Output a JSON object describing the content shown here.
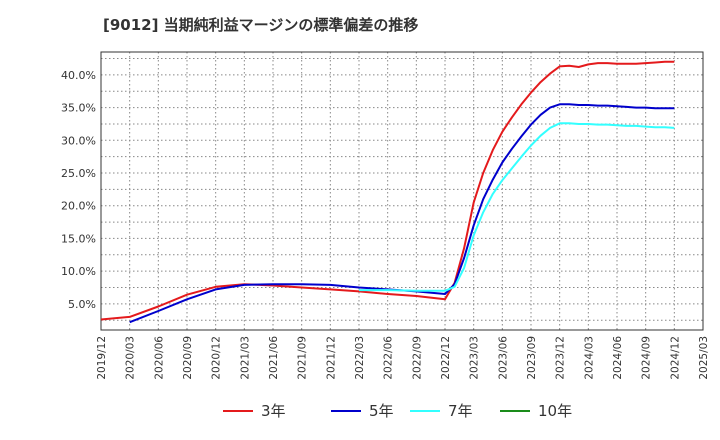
{
  "title": "[9012]  当期純利益マージンの標準偏差の推移",
  "colors": {
    "3年": "#e41a1c",
    "5年": "#0000cc",
    "7年": "#33ffff",
    "10年": "#1a8c1a"
  },
  "chart_data": {
    "type": "line",
    "title": "[9012]  当期純利益マージンの標準偏差の推移",
    "xlabel": "",
    "ylabel": "",
    "x_tick_labels": [
      "2019/12",
      "2020/03",
      "2020/06",
      "2020/09",
      "2020/12",
      "2021/03",
      "2021/06",
      "2021/09",
      "2021/12",
      "2022/03",
      "2022/06",
      "2022/09",
      "2022/12",
      "2023/03",
      "2023/06",
      "2023/09",
      "2023/12",
      "2024/03",
      "2024/06",
      "2024/09",
      "2024/12",
      "2025/03"
    ],
    "y_tick_labels": [
      "5.0%",
      "10.0%",
      "15.0%",
      "20.0%",
      "25.0%",
      "30.0%",
      "35.0%",
      "40.0%"
    ],
    "ylim": [
      1.0,
      43.5
    ],
    "grid": true,
    "legend_position": "bottom",
    "series": [
      {
        "name": "3年",
        "color": "#e41a1c",
        "x": [
          "2019/12",
          "2020/03",
          "2020/06",
          "2020/09",
          "2020/12",
          "2021/03",
          "2021/06",
          "2021/09",
          "2021/12",
          "2022/03",
          "2022/06",
          "2022/09",
          "2022/12",
          "2023/01",
          "2023/02",
          "2023/03",
          "2023/04",
          "2023/05",
          "2023/06",
          "2023/07",
          "2023/08",
          "2023/09",
          "2023/10",
          "2023/11",
          "2023/12",
          "2024/01",
          "2024/02",
          "2024/03",
          "2024/04",
          "2024/05",
          "2024/06",
          "2024/07",
          "2024/08",
          "2024/09",
          "2024/10",
          "2024/11",
          "2024/12"
        ],
        "values": [
          2.6,
          3.0,
          4.6,
          6.4,
          7.6,
          8.0,
          7.8,
          7.5,
          7.2,
          6.9,
          6.5,
          6.2,
          5.7,
          8.2,
          13.5,
          20.5,
          25.0,
          28.5,
          31.3,
          33.5,
          35.5,
          37.3,
          38.9,
          40.2,
          41.3,
          41.4,
          41.2,
          41.6,
          41.8,
          41.8,
          41.7,
          41.7,
          41.7,
          41.8,
          41.9,
          42.0,
          42.0
        ]
      },
      {
        "name": "5年",
        "color": "#0000cc",
        "x": [
          "2020/03",
          "2020/06",
          "2020/09",
          "2020/12",
          "2021/03",
          "2021/06",
          "2021/09",
          "2021/12",
          "2022/03",
          "2022/06",
          "2022/09",
          "2022/12",
          "2023/01",
          "2023/02",
          "2023/03",
          "2023/04",
          "2023/05",
          "2023/06",
          "2023/07",
          "2023/08",
          "2023/09",
          "2023/10",
          "2023/11",
          "2023/12",
          "2024/01",
          "2024/02",
          "2024/03",
          "2024/04",
          "2024/05",
          "2024/06",
          "2024/07",
          "2024/08",
          "2024/09",
          "2024/10",
          "2024/11",
          "2024/12"
        ],
        "values": [
          2.2,
          3.9,
          5.7,
          7.2,
          7.9,
          8.0,
          8.0,
          7.9,
          7.5,
          7.2,
          6.9,
          6.5,
          8.0,
          12.0,
          17.0,
          21.0,
          24.0,
          26.6,
          28.7,
          30.6,
          32.4,
          33.9,
          35.0,
          35.5,
          35.5,
          35.4,
          35.4,
          35.3,
          35.3,
          35.2,
          35.1,
          35.0,
          35.0,
          34.9,
          34.9,
          34.9
        ]
      },
      {
        "name": "7年",
        "color": "#33ffff",
        "x": [
          "2022/03",
          "2022/06",
          "2022/09",
          "2022/12",
          "2023/01",
          "2023/02",
          "2023/03",
          "2023/04",
          "2023/05",
          "2023/06",
          "2023/07",
          "2023/08",
          "2023/09",
          "2023/10",
          "2023/11",
          "2023/12",
          "2024/01",
          "2024/02",
          "2024/03",
          "2024/04",
          "2024/05",
          "2024/06",
          "2024/07",
          "2024/08",
          "2024/09",
          "2024/10",
          "2024/11",
          "2024/12"
        ],
        "values": [
          7.1,
          7.1,
          7.0,
          7.0,
          7.6,
          10.5,
          15.5,
          19.0,
          21.8,
          23.9,
          25.7,
          27.5,
          29.2,
          30.7,
          31.9,
          32.6,
          32.6,
          32.5,
          32.5,
          32.4,
          32.4,
          32.3,
          32.2,
          32.2,
          32.1,
          32.0,
          32.0,
          31.9
        ]
      },
      {
        "name": "10年",
        "color": "#1a8c1a",
        "x": [],
        "values": []
      }
    ]
  }
}
